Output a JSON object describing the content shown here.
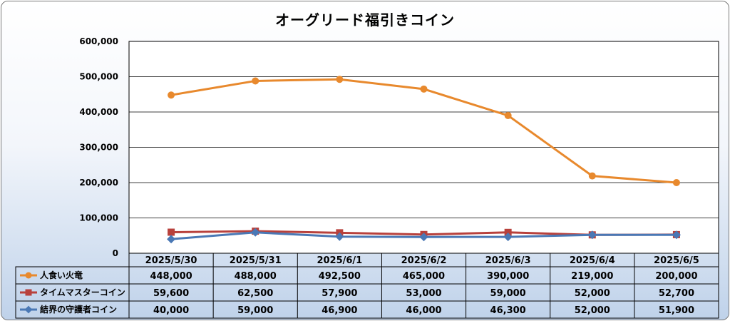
{
  "chart_data": {
    "type": "line",
    "title": "オーグリード福引きコイン",
    "categories": [
      "2025/5/30",
      "2025/5/31",
      "2025/6/1",
      "2025/6/2",
      "2025/6/3",
      "2025/6/4",
      "2025/6/5"
    ],
    "ylim": [
      0,
      600000
    ],
    "yticks": [
      0,
      100000,
      200000,
      300000,
      400000,
      500000,
      600000
    ],
    "ytick_labels": [
      "0",
      "100,000",
      "200,000",
      "300,000",
      "400,000",
      "500,000",
      "600,000"
    ],
    "grid": true,
    "legend_position": "data-table-left",
    "series": [
      {
        "name": "人食い火竜",
        "color": "#e8892d",
        "marker": "circle",
        "values": [
          448000,
          488000,
          492500,
          465000,
          390000,
          219000,
          200000
        ],
        "labels": [
          "448,000",
          "488,000",
          "492,500",
          "465,000",
          "390,000",
          "219,000",
          "200,000"
        ]
      },
      {
        "name": "タイムマスターコイン",
        "color": "#b8413c",
        "marker": "square",
        "values": [
          59600,
          62500,
          57900,
          53000,
          59000,
          52000,
          52700
        ],
        "labels": [
          "59,600",
          "62,500",
          "57,900",
          "53,000",
          "59,000",
          "52,000",
          "52,700"
        ]
      },
      {
        "name": "結界の守護者コイン",
        "color": "#4a78b5",
        "marker": "diamond",
        "values": [
          40000,
          59000,
          46900,
          46000,
          46300,
          52000,
          51900
        ],
        "labels": [
          "40,000",
          "59,000",
          "46,900",
          "46,000",
          "46,300",
          "52,000",
          "51,900"
        ]
      }
    ]
  }
}
